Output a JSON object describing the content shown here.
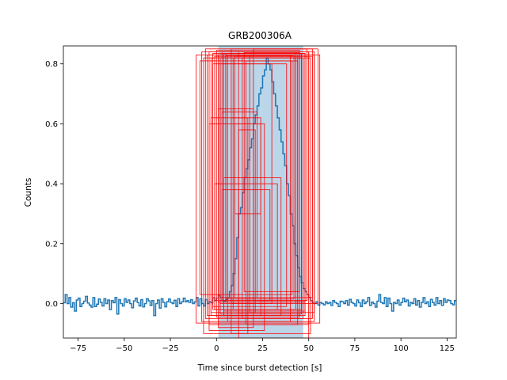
{
  "chart_data": {
    "type": "line",
    "title": "GRB200306A",
    "xlabel": "Time since burst detection [s]",
    "ylabel": "Counts",
    "xlim": [
      -83,
      130
    ],
    "ylim": [
      -0.115,
      0.86
    ],
    "xticks": [
      -75,
      -50,
      -25,
      0,
      25,
      50,
      75,
      100,
      125
    ],
    "yticks": [
      0.0,
      0.2,
      0.4,
      0.6,
      0.8
    ],
    "grid": false,
    "legend": "none",
    "colors": {
      "line": "#1f77b4",
      "shade": "#1f77b4",
      "boxes": "#ff0000"
    },
    "shaded_region": {
      "x": [
        1,
        47
      ],
      "opacity": 0.3
    },
    "series": [
      {
        "step": 1,
        "x_start": -83,
        "values": [
          0.003,
          0.03,
          0.0,
          0.02,
          -0.012,
          0.003,
          -0.025,
          0.012,
          0.018,
          -0.01,
          0.0,
          0.008,
          0.024,
          0.002,
          -0.005,
          -0.012,
          0.02,
          -0.01,
          -0.002,
          0.015,
          0.004,
          -0.008,
          0.016,
          0.0,
          0.012,
          -0.02,
          0.01,
          0.003,
          0.02,
          -0.035,
          0.013,
          0.0,
          -0.008,
          0.016,
          0.004,
          0.012,
          0.0,
          -0.014,
          0.009,
          0.018,
          0.004,
          -0.008,
          0.013,
          -0.011,
          0.0,
          0.016,
          0.009,
          -0.006,
          0.01,
          -0.04,
          0.0,
          0.012,
          -0.015,
          0.016,
          0.004,
          -0.011,
          0.006,
          0.015,
          0.004,
          0.0,
          0.011,
          -0.01,
          0.016,
          0.0,
          0.006,
          0.018,
          0.006,
          0.01,
          0.004,
          0.013,
          0.0,
          0.006,
          0.02,
          -0.008,
          0.016,
          0.0,
          -0.008,
          0.013,
          0.0,
          0.006,
          0.003,
          0.02,
          0.01,
          0.018,
          0.028,
          0.02,
          0.01,
          0.006,
          0.014,
          0.02,
          0.04,
          0.06,
          0.1,
          0.15,
          0.22,
          0.3,
          0.32,
          0.37,
          0.42,
          0.45,
          0.48,
          0.52,
          0.55,
          0.6,
          0.63,
          0.66,
          0.7,
          0.72,
          0.76,
          0.78,
          0.82,
          0.8,
          0.78,
          0.74,
          0.7,
          0.66,
          0.62,
          0.58,
          0.54,
          0.5,
          0.46,
          0.4,
          0.36,
          0.3,
          0.26,
          0.2,
          0.16,
          0.12,
          0.09,
          0.07,
          0.05,
          0.04,
          0.03,
          0.02,
          0.01,
          0.003,
          0.0,
          0.006,
          -0.005,
          0.004,
          0.0,
          -0.004,
          0.006,
          0.0,
          0.004,
          -0.006,
          0.01,
          0.004,
          0.0,
          -0.01,
          0.008,
          0.006,
          0.0,
          0.01,
          -0.005,
          0.014,
          0.004,
          0.0,
          -0.008,
          0.012,
          0.003,
          -0.01,
          0.012,
          0.0,
          0.006,
          0.02,
          -0.006,
          0.005,
          0.0,
          -0.012,
          0.008,
          0.03,
          0.004,
          0.0,
          0.02,
          -0.01,
          0.018,
          0.0,
          -0.025,
          0.004,
          0.0,
          0.012,
          -0.005,
          0.004,
          0.018,
          0.006,
          0.012,
          -0.008,
          0.004,
          0.0,
          0.016,
          -0.005,
          0.01,
          -0.012,
          0.004,
          0.02,
          0.0,
          0.006,
          -0.01,
          0.014,
          0.004,
          -0.005,
          0.02,
          0.0,
          0.01,
          -0.006,
          0.016,
          0.004,
          0.012,
          0.01,
          0.0,
          -0.004,
          0.01
        ]
      }
    ],
    "boxes": [
      [
        -11,
        0.83,
        56,
        -0.065
      ],
      [
        -8,
        0.84,
        53,
        -0.06
      ],
      [
        -7,
        0.82,
        51,
        -0.1
      ],
      [
        -6,
        0.85,
        52,
        -0.05
      ],
      [
        -5,
        0.83,
        48,
        -0.04
      ],
      [
        -4,
        0.84,
        50,
        -0.07
      ],
      [
        -3,
        0.82,
        47,
        -0.03
      ],
      [
        -2,
        0.835,
        46,
        -0.02
      ],
      [
        -1,
        0.825,
        49,
        0.01
      ],
      [
        0,
        0.845,
        45,
        -0.045
      ],
      [
        1,
        0.83,
        44,
        0.005
      ],
      [
        2,
        0.82,
        46,
        -0.035
      ],
      [
        3,
        0.84,
        43,
        0.02
      ],
      [
        4,
        0.835,
        48,
        -0.025
      ],
      [
        5,
        0.828,
        42,
        0.015
      ],
      [
        -9,
        0.81,
        41,
        0.03
      ],
      [
        -2,
        0.8,
        38,
        -0.01
      ],
      [
        6,
        0.83,
        40,
        -0.06
      ],
      [
        8,
        0.85,
        55,
        0.0
      ],
      [
        10,
        0.825,
        52,
        0.02
      ],
      [
        12,
        0.84,
        50,
        -0.115
      ],
      [
        14,
        0.82,
        47,
        -0.05
      ],
      [
        15,
        0.838,
        45,
        0.04
      ],
      [
        18,
        0.83,
        53,
        -0.03
      ],
      [
        20,
        0.85,
        49,
        0.01
      ],
      [
        -4,
        0.6,
        26,
        -0.09
      ],
      [
        -3,
        0.62,
        24,
        -0.04
      ],
      [
        1,
        0.65,
        20,
        -0.08
      ],
      [
        3,
        0.64,
        22,
        0.02
      ],
      [
        8,
        0.62,
        17,
        -0.1
      ],
      [
        10,
        0.6,
        24,
        0.3
      ],
      [
        12,
        0.58,
        21,
        -0.03
      ],
      [
        -1,
        0.4,
        33,
        -0.02
      ],
      [
        4,
        0.42,
        35,
        -0.04
      ],
      [
        3,
        0.38,
        29,
        0.01
      ],
      [
        5,
        0.835,
        48,
        0.005
      ],
      [
        9,
        0.82,
        43,
        -0.02
      ],
      [
        16,
        0.81,
        44,
        -0.07
      ],
      [
        2,
        0.8,
        30,
        0.0
      ]
    ]
  }
}
